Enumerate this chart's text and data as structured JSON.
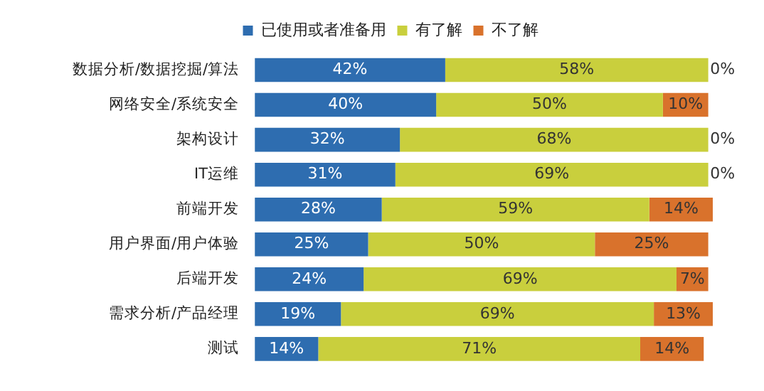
{
  "chart_data": {
    "type": "bar",
    "orientation": "horizontal",
    "stacked": true,
    "legend": "top",
    "grid": false,
    "tick_labels": "y",
    "xlim": [
      0,
      101
    ],
    "categories": [
      "数据分析/数据挖掘/算法",
      "网络安全/系统安全",
      "架构设计",
      "IT运维",
      "前端开发",
      "用户界面/用户体验",
      "后端开发",
      "需求分析/产品经理",
      "测试"
    ],
    "series": [
      {
        "name": "已使用或者准备用",
        "color": "#2e6db0",
        "values": [
          42,
          40,
          32,
          31,
          28,
          25,
          24,
          19,
          14
        ],
        "value_labels": [
          "42%",
          "40%",
          "32%",
          "31%",
          "28%",
          "25%",
          "24%",
          "19%",
          "14%"
        ]
      },
      {
        "name": "有了解",
        "color": "#c9cf3d",
        "values": [
          58,
          50,
          68,
          69,
          59,
          50,
          69,
          69,
          71
        ],
        "value_labels": [
          "58%",
          "50%",
          "68%",
          "69%",
          "59%",
          "50%",
          "69%",
          "69%",
          "71%"
        ]
      },
      {
        "name": "不了解",
        "color": "#d9722c",
        "values": [
          0,
          10,
          0,
          0,
          14,
          25,
          7,
          13,
          14
        ],
        "value_labels": [
          "0%",
          "10%",
          "0%",
          "0%",
          "14%",
          "25%",
          "7%",
          "13%",
          "14%"
        ]
      }
    ]
  }
}
